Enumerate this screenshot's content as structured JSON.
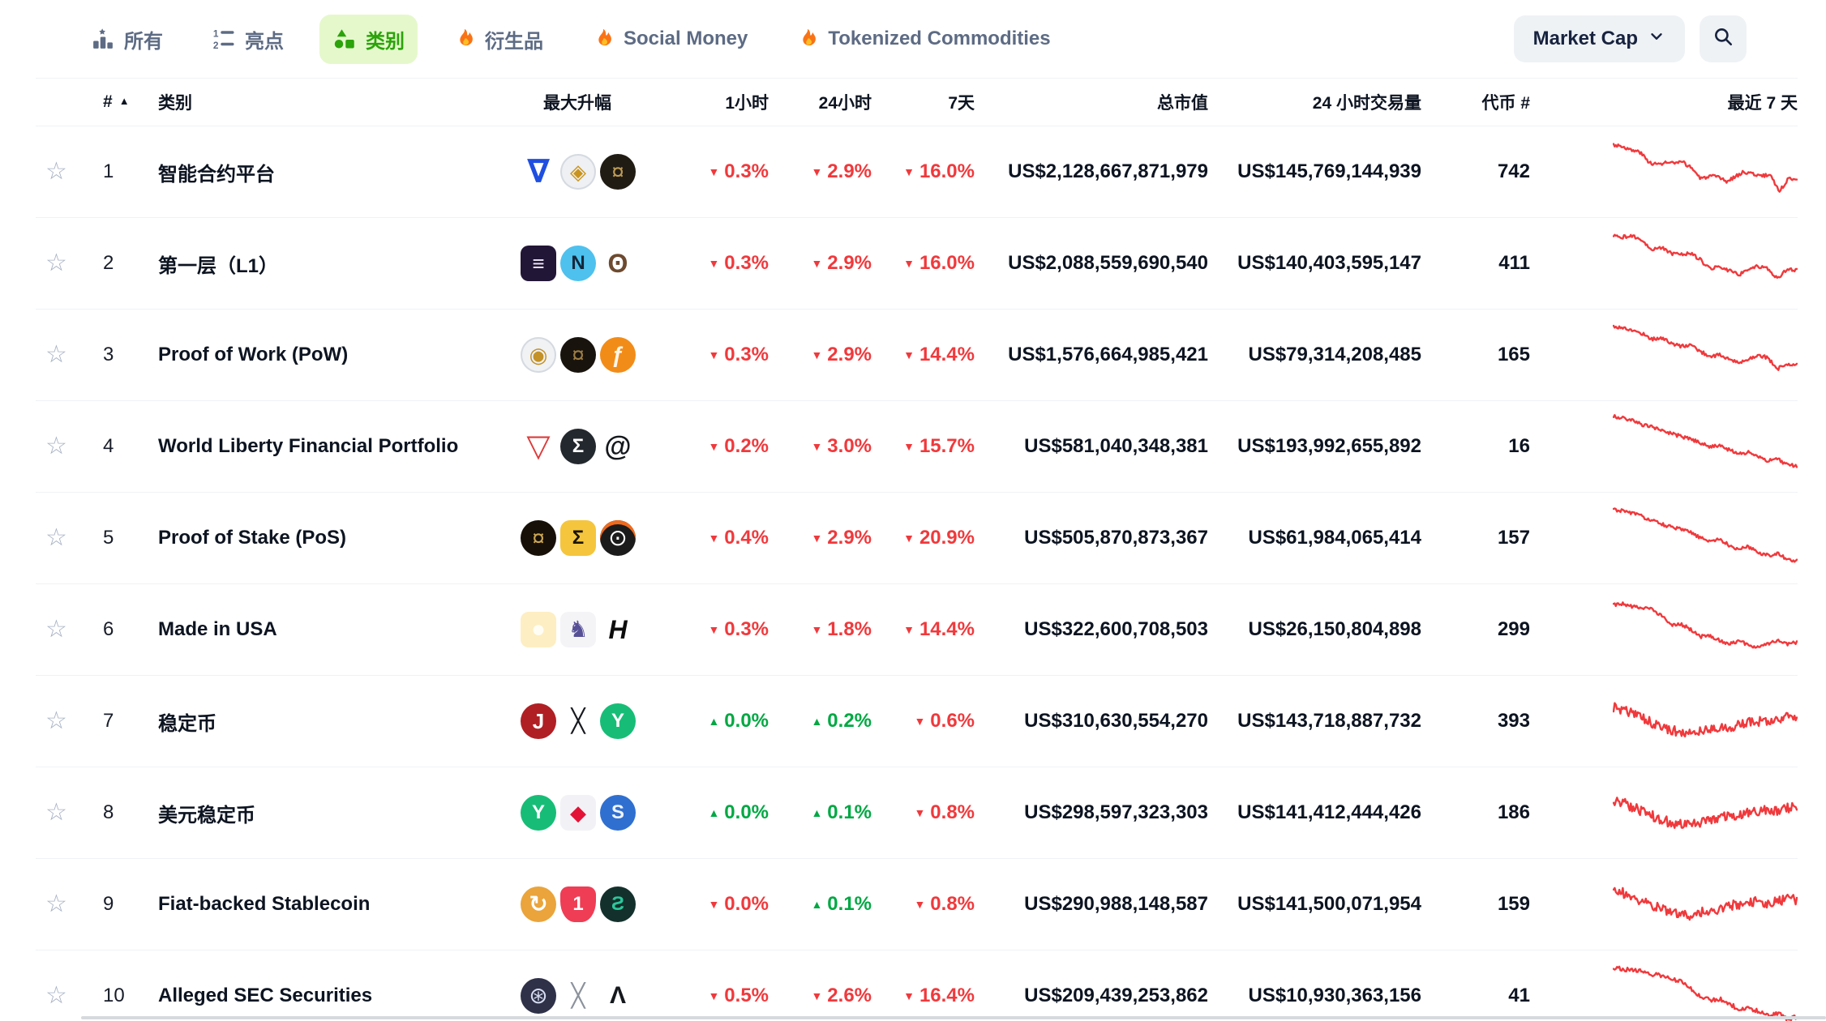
{
  "colors": {
    "up": "#00a843",
    "down": "#f0393c",
    "nav_active": "#2ba30a",
    "nav_active_bg": "#e5f8cc",
    "accent_flame": "#f97316"
  },
  "nav": {
    "tabs": [
      {
        "label": "所有",
        "icon": "chart-bars-star",
        "active": false
      },
      {
        "label": "亮点",
        "icon": "numbered-list",
        "active": false
      },
      {
        "label": "类别",
        "icon": "shapes",
        "active": true
      },
      {
        "label": "衍生品",
        "icon": "flame",
        "active": false
      },
      {
        "label": "Social Money",
        "icon": "flame",
        "active": false
      },
      {
        "label": "Tokenized Commodities",
        "icon": "flame",
        "active": false
      }
    ],
    "sort_button": {
      "label": "Market Cap"
    }
  },
  "table": {
    "headers": {
      "rank": "#",
      "sort_icon": "▲",
      "category": "类别",
      "top_gainers": "最大升幅",
      "h1": "1小时",
      "h24": "24小时",
      "d7": "7天",
      "market_cap": "总市值",
      "volume_24h": "24 小时交易量",
      "token_count": "代币 #",
      "last_7d": "最近 7 天"
    },
    "rows": [
      {
        "rank": "1",
        "name": "智能合约平台",
        "icons": [
          {
            "name": "blue-triangle-coin",
            "shape": "none",
            "bg": "",
            "fg": "#1f4fe0",
            "glyph": "∇",
            "fs": 40,
            "bold": true
          },
          {
            "name": "gold-circuit-coin",
            "shape": "circle",
            "bg": "#eef0f3",
            "fg": "#c9941e",
            "glyph": "◈",
            "fs": 26,
            "border": "#d5dae1"
          },
          {
            "name": "eagle-coin",
            "shape": "circle",
            "bg": "#201c14",
            "fg": "#bd9b55",
            "glyph": "¤",
            "fs": 28
          }
        ],
        "h1": {
          "dir": "down",
          "value": "0.3%"
        },
        "h24": {
          "dir": "down",
          "value": "2.9%"
        },
        "d7": {
          "dir": "down",
          "value": "16.0%"
        },
        "market_cap": "US$2,128,667,871,979",
        "volume_24h": "US$145,769,144,939",
        "token_count": "742",
        "spark": [
          0.88,
          0.86,
          0.8,
          0.78,
          0.64,
          0.6,
          0.63,
          0.62,
          0.63,
          0.55,
          0.4,
          0.44,
          0.42,
          0.36,
          0.44,
          0.5,
          0.47,
          0.44,
          0.46,
          0.22,
          0.4,
          0.41
        ],
        "spark_noise": 0.025
      },
      {
        "rank": "2",
        "name": "第一层（L1）",
        "icons": [
          {
            "name": "dark-exchange-coin",
            "shape": "square",
            "bg": "#221637",
            "fg": "#efe9f7",
            "glyph": "≡",
            "fs": 26
          },
          {
            "name": "n-blue-coin",
            "shape": "circle",
            "bg": "#4ec1ee",
            "fg": "#12263a",
            "glyph": "N",
            "fs": 24,
            "bold": true
          },
          {
            "name": "owl-coin",
            "shape": "none",
            "bg": "",
            "fg": "#6d4a2f",
            "glyph": "ʘ",
            "fs": 32,
            "bold": true
          }
        ],
        "h1": {
          "dir": "down",
          "value": "0.3%"
        },
        "h24": {
          "dir": "down",
          "value": "2.9%"
        },
        "d7": {
          "dir": "down",
          "value": "16.0%"
        },
        "market_cap": "US$2,088,559,690,540",
        "volume_24h": "US$140,403,595,147",
        "token_count": "411",
        "spark": [
          0.88,
          0.87,
          0.88,
          0.82,
          0.7,
          0.72,
          0.64,
          0.63,
          0.64,
          0.55,
          0.42,
          0.45,
          0.4,
          0.34,
          0.42,
          0.46,
          0.43,
          0.28,
          0.42,
          0.4
        ],
        "spark_noise": 0.025
      },
      {
        "rank": "3",
        "name": "Proof of Work (PoW)",
        "icons": [
          {
            "name": "gold-medal-coin",
            "shape": "circle",
            "bg": "#f0f2f4",
            "fg": "#c39127",
            "glyph": "◉",
            "fs": 26,
            "border": "#d5dae1"
          },
          {
            "name": "dark-eagle-coin",
            "shape": "circle",
            "bg": "#18130d",
            "fg": "#9b7c44",
            "glyph": "¤",
            "fs": 28
          },
          {
            "name": "orange-f-coin",
            "shape": "circle",
            "bg": "#f28c18",
            "fg": "#fff7ea",
            "glyph": "ƒ",
            "fs": 28,
            "bold": true
          }
        ],
        "h1": {
          "dir": "down",
          "value": "0.3%"
        },
        "h24": {
          "dir": "down",
          "value": "2.9%"
        },
        "d7": {
          "dir": "down",
          "value": "14.4%"
        },
        "market_cap": "US$1,576,664,985,421",
        "volume_24h": "US$79,314,208,485",
        "token_count": "165",
        "spark": [
          0.9,
          0.88,
          0.84,
          0.8,
          0.72,
          0.74,
          0.66,
          0.62,
          0.64,
          0.55,
          0.48,
          0.5,
          0.44,
          0.38,
          0.45,
          0.5,
          0.46,
          0.3,
          0.38,
          0.36
        ],
        "spark_noise": 0.025
      },
      {
        "rank": "4",
        "name": "World Liberty Financial Portfolio",
        "icons": [
          {
            "name": "tron-triangle-coin",
            "shape": "none",
            "bg": "",
            "fg": "#dd3b3b",
            "glyph": "▽",
            "fs": 38,
            "bold": true
          },
          {
            "name": "sigma-dark-coin",
            "shape": "circle",
            "bg": "#23282e",
            "fg": "#ffffff",
            "glyph": "Σ",
            "fs": 24,
            "bold": true
          },
          {
            "name": "spiral-coin",
            "shape": "none",
            "bg": "",
            "fg": "#14181c",
            "glyph": "@",
            "fs": 34,
            "bold": true
          }
        ],
        "h1": {
          "dir": "down",
          "value": "0.2%"
        },
        "h24": {
          "dir": "down",
          "value": "3.0%"
        },
        "d7": {
          "dir": "down",
          "value": "15.7%"
        },
        "market_cap": "US$581,040,348,381",
        "volume_24h": "US$193,992,655,892",
        "token_count": "16",
        "spark": [
          0.92,
          0.9,
          0.86,
          0.8,
          0.78,
          0.72,
          0.68,
          0.64,
          0.6,
          0.55,
          0.5,
          0.52,
          0.45,
          0.4,
          0.42,
          0.35,
          0.3,
          0.32,
          0.25,
          0.22
        ],
        "spark_noise": 0.025
      },
      {
        "rank": "5",
        "name": "Proof of Stake (PoS)",
        "icons": [
          {
            "name": "eagle-gold-coin",
            "shape": "circle",
            "bg": "#171008",
            "fg": "#caa553",
            "glyph": "¤",
            "fs": 28
          },
          {
            "name": "yellow-hex-sigma-coin",
            "shape": "hex",
            "bg": "#f5c53d",
            "fg": "#1b1405",
            "glyph": "Σ",
            "fs": 24,
            "bold": true
          },
          {
            "name": "black-orange-ring-coin",
            "shape": "circle",
            "bg": "#1b1b1b",
            "fg": "#ffffff",
            "glyph": "⊙",
            "fs": 28,
            "top": "#f06a1d"
          }
        ],
        "h1": {
          "dir": "down",
          "value": "0.4%"
        },
        "h24": {
          "dir": "down",
          "value": "2.9%"
        },
        "d7": {
          "dir": "down",
          "value": "20.9%"
        },
        "market_cap": "US$505,870,873,367",
        "volume_24h": "US$61,984,065,414",
        "token_count": "157",
        "spark": [
          0.9,
          0.88,
          0.85,
          0.8,
          0.74,
          0.7,
          0.65,
          0.62,
          0.58,
          0.5,
          0.46,
          0.48,
          0.4,
          0.34,
          0.38,
          0.3,
          0.26,
          0.28,
          0.2,
          0.18
        ],
        "spark_noise": 0.025
      },
      {
        "rank": "6",
        "name": "Made in USA",
        "icons": [
          {
            "name": "egg-coin",
            "shape": "square",
            "bg": "#fdeec3",
            "fg": "#fffdf4",
            "glyph": "●",
            "fs": 30
          },
          {
            "name": "purple-bird-coin",
            "shape": "square",
            "bg": "#f4f4f7",
            "fg": "#575096",
            "glyph": "♞",
            "fs": 28
          },
          {
            "name": "hashflow-h-coin",
            "shape": "none",
            "bg": "",
            "fg": "#0d0d0d",
            "glyph": "H",
            "fs": 32,
            "bold": true,
            "italic": true
          }
        ],
        "h1": {
          "dir": "down",
          "value": "0.3%"
        },
        "h24": {
          "dir": "down",
          "value": "1.8%"
        },
        "d7": {
          "dir": "down",
          "value": "14.4%"
        },
        "market_cap": "US$322,600,708,503",
        "volume_24h": "US$26,150,804,898",
        "token_count": "299",
        "spark": [
          0.85,
          0.86,
          0.82,
          0.8,
          0.78,
          0.7,
          0.55,
          0.58,
          0.5,
          0.4,
          0.42,
          0.35,
          0.3,
          0.34,
          0.28,
          0.25,
          0.3,
          0.34,
          0.3,
          0.32
        ],
        "spark_noise": 0.025
      },
      {
        "rank": "7",
        "name": "稳定币",
        "icons": [
          {
            "name": "j-red-coin",
            "shape": "circle",
            "bg": "#b01f24",
            "fg": "#ffffff",
            "glyph": "J",
            "fs": 26,
            "bold": true
          },
          {
            "name": "x-black-coin",
            "shape": "none",
            "bg": "",
            "fg": "#16181d",
            "glyph": "╳",
            "fs": 28,
            "bold": true
          },
          {
            "name": "y-green-coin",
            "shape": "circle",
            "bg": "#17bd77",
            "fg": "#ffffff",
            "glyph": "Y",
            "fs": 24,
            "bold": true
          }
        ],
        "h1": {
          "dir": "up",
          "value": "0.0%"
        },
        "h24": {
          "dir": "up",
          "value": "0.2%"
        },
        "d7": {
          "dir": "down",
          "value": "0.6%"
        },
        "market_cap": "US$310,630,554,270",
        "volume_24h": "US$143,718,887,732",
        "token_count": "393",
        "spark": [
          0.7,
          0.66,
          0.6,
          0.55,
          0.48,
          0.42,
          0.38,
          0.35,
          0.33,
          0.35,
          0.38,
          0.4,
          0.42,
          0.45,
          0.48,
          0.5,
          0.52,
          0.5,
          0.55,
          0.58
        ],
        "spark_noise": 0.07
      },
      {
        "rank": "8",
        "name": "美元稳定币",
        "icons": [
          {
            "name": "y-green-coin",
            "shape": "circle",
            "bg": "#17bd77",
            "fg": "#ffffff",
            "glyph": "Y",
            "fs": 24,
            "bold": true
          },
          {
            "name": "hive-red-coin",
            "shape": "square",
            "bg": "#f2f2f6",
            "fg": "#e31337",
            "glyph": "◆",
            "fs": 26
          },
          {
            "name": "blue-s-hex-coin",
            "shape": "circle",
            "bg": "#2f6fd0",
            "fg": "#eef4fd",
            "glyph": "S",
            "fs": 24,
            "bold": true
          }
        ],
        "h1": {
          "dir": "up",
          "value": "0.0%"
        },
        "h24": {
          "dir": "up",
          "value": "0.1%"
        },
        "d7": {
          "dir": "down",
          "value": "0.8%"
        },
        "market_cap": "US$298,597,323,303",
        "volume_24h": "US$141,412,444,426",
        "token_count": "186",
        "spark": [
          0.68,
          0.64,
          0.58,
          0.52,
          0.46,
          0.4,
          0.36,
          0.34,
          0.34,
          0.36,
          0.4,
          0.44,
          0.46,
          0.48,
          0.5,
          0.52,
          0.55,
          0.52,
          0.56,
          0.6
        ],
        "spark_noise": 0.07
      },
      {
        "rank": "9",
        "name": "Fiat-backed Stablecoin",
        "icons": [
          {
            "name": "hand-amber-coin",
            "shape": "circle",
            "bg": "#eaa43b",
            "fg": "#ffffff",
            "glyph": "↻",
            "fs": 28,
            "bold": true
          },
          {
            "name": "shield-one-coin",
            "shape": "shield",
            "bg": "#ef3d55",
            "fg": "#ffffff",
            "glyph": "1",
            "fs": 24,
            "bold": true
          },
          {
            "name": "squiggle-s-coin",
            "shape": "circle",
            "bg": "#13302c",
            "fg": "#2bc79b",
            "glyph": "Ƨ",
            "fs": 24,
            "bold": true
          }
        ],
        "h1": {
          "dir": "down",
          "value": "0.0%"
        },
        "h24": {
          "dir": "up",
          "value": "0.1%"
        },
        "d7": {
          "dir": "down",
          "value": "0.8%"
        },
        "market_cap": "US$290,988,148,587",
        "volume_24h": "US$141,500,071,954",
        "token_count": "159",
        "spark": [
          0.72,
          0.66,
          0.6,
          0.54,
          0.48,
          0.44,
          0.4,
          0.36,
          0.35,
          0.38,
          0.42,
          0.44,
          0.48,
          0.5,
          0.52,
          0.54,
          0.52,
          0.55,
          0.58,
          0.56
        ],
        "spark_noise": 0.07
      },
      {
        "rank": "10",
        "name": "Alleged SEC Securities",
        "icons": [
          {
            "name": "atom-navy-coin",
            "shape": "circle",
            "bg": "#2e3148",
            "fg": "#d7dcf2",
            "glyph": "⊛",
            "fs": 28
          },
          {
            "name": "gray-cross-coin",
            "shape": "none",
            "bg": "",
            "fg": "#8b929c",
            "glyph": "╳",
            "fs": 28,
            "bold": true
          },
          {
            "name": "algorand-coin",
            "shape": "none",
            "bg": "",
            "fg": "#15181c",
            "glyph": "Λ",
            "fs": 30,
            "bold": true
          }
        ],
        "h1": {
          "dir": "down",
          "value": "0.5%"
        },
        "h24": {
          "dir": "down",
          "value": "2.6%"
        },
        "d7": {
          "dir": "down",
          "value": "16.4%"
        },
        "market_cap": "US$209,439,253,862",
        "volume_24h": "US$10,930,363,156",
        "token_count": "41",
        "spark": [
          0.9,
          0.88,
          0.85,
          0.86,
          0.8,
          0.78,
          0.74,
          0.7,
          0.6,
          0.5,
          0.44,
          0.46,
          0.4,
          0.3,
          0.34,
          0.28,
          0.22,
          0.26,
          0.18,
          0.2
        ],
        "spark_noise": 0.03
      }
    ]
  }
}
